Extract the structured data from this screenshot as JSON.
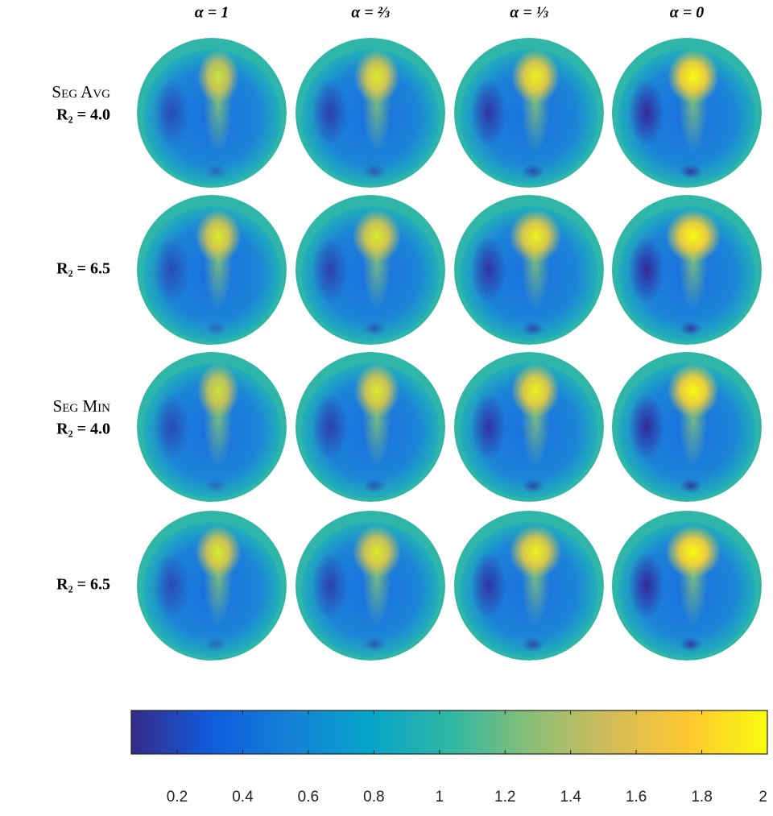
{
  "chart_data": {
    "type": "image-grid",
    "columns": [
      "α = 1",
      "α = ⅔",
      "α = ⅓",
      "α = 0"
    ],
    "rows": [
      {
        "method": "Seg Avg",
        "label": "R₂ = 4.0"
      },
      {
        "label": "R₂ = 6.5"
      },
      {
        "method": "Seg Min",
        "label": "R₂ = 4.0"
      },
      {
        "label": "R₂ = 6.5"
      }
    ],
    "colorbar": {
      "lim": [
        0.06,
        2
      ],
      "ticks": [
        0.2,
        0.4,
        0.6,
        0.8,
        1,
        1.2,
        1.4,
        1.6,
        1.8,
        2
      ],
      "colors": [
        "#352a87",
        "#0f5cdd",
        "#1481d6",
        "#06a4ca",
        "#2eb7a4",
        "#87bf77",
        "#d1bb59",
        "#fec832",
        "#f9fb0e"
      ]
    }
  }
}
